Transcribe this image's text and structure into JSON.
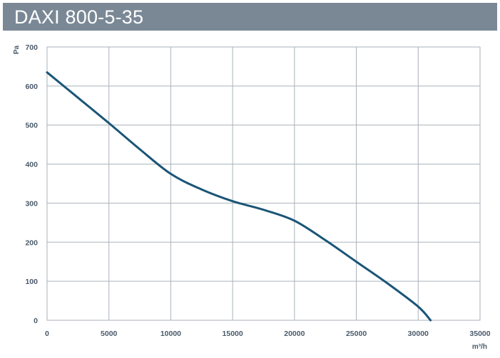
{
  "header": {
    "title": "DAXI 800-5-35"
  },
  "colors": {
    "header_bg": "#7a8896",
    "curve": "#1a5577",
    "grid": "#a9b2ba",
    "text": "#4a5a6a"
  },
  "chart_data": {
    "type": "line",
    "title": "DAXI 800-5-35",
    "xlabel": "m³/h",
    "ylabel": "Pa",
    "xlim": [
      0,
      35000
    ],
    "ylim": [
      0,
      700
    ],
    "x_ticks": [
      "0",
      "5000",
      "10000",
      "15000",
      "20000",
      "25000",
      "30000",
      "35000"
    ],
    "y_ticks": [
      "0",
      "100",
      "200",
      "300",
      "400",
      "500",
      "600",
      "700"
    ],
    "grid": true,
    "series": [
      {
        "x": [
          0,
          2500,
          5000,
          7500,
          10000,
          12500,
          15000,
          17500,
          20000,
          22500,
          25000,
          27500,
          30000,
          31000
        ],
        "y": [
          635,
          570,
          505,
          438,
          375,
          335,
          305,
          283,
          255,
          205,
          150,
          95,
          35,
          0
        ]
      }
    ]
  }
}
